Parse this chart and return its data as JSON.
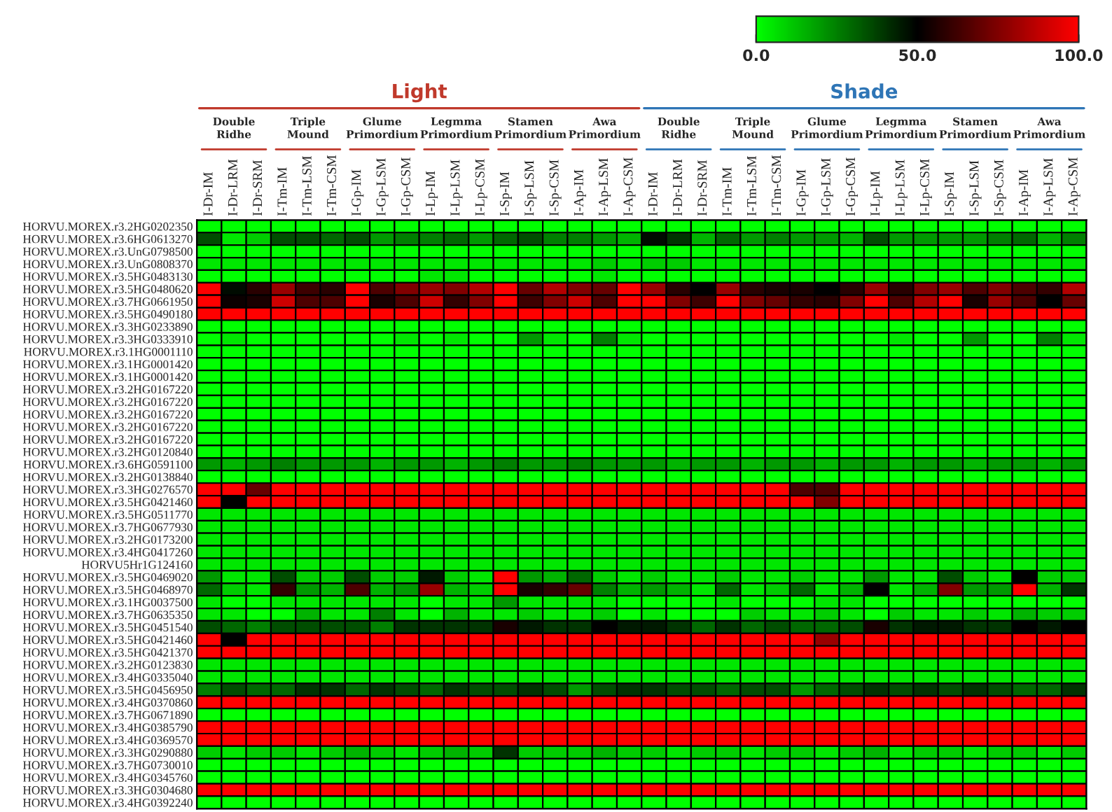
{
  "chart_data": {
    "type": "heatmap",
    "categories": [
      "I-Dr-IM",
      "I-Dr-LRM",
      "I-Dr-SRM",
      "I-Tm-IM",
      "I-Tm-LSM",
      "I-Tm-CSM",
      "I-Gp-IM",
      "I-Gp-LSM",
      "I-Gp-CSM",
      "I-Lp-IM",
      "I-Lp-LSM",
      "I-Lp-CSM",
      "I-Sp-IM",
      "I-Sp-LSM",
      "I-Sp-CSM",
      "I-Ap-IM",
      "I-Ap-LSM",
      "I-Ap-CSM",
      "I-Dr-IM",
      "I-Dr-LRM",
      "I-Dr-SRM",
      "I-Tm-IM",
      "I-Tm-LSM",
      "I-Tm-CSM",
      "I-Gp-IM",
      "I-Gp-LSM",
      "I-Gp-CSM",
      "I-Lp-IM",
      "I-Lp-LSM",
      "I-Lp-CSM",
      "I-Sp-IM",
      "I-Sp-LSM",
      "I-Sp-CSM",
      "I-Ap-IM",
      "I-Ap-LSM",
      "I-Ap-CSM"
    ],
    "y_categories": [
      "HORVU.MOREX.r3.2HG0202350",
      "HORVU.MOREX.r3.6HG0613270",
      "HORVU.MOREX.r3.UnG0798500",
      "HORVU.MOREX.r3.UnG0808370",
      "HORVU.MOREX.r3.5HG0483130",
      "HORVU.MOREX.r3.5HG0480620",
      "HORVU.MOREX.r3.7HG0661950",
      "HORVU.MOREX.r3.5HG0490180",
      "HORVU.MOREX.r3.3HG0233890",
      "HORVU.MOREX.r3.3HG0333910",
      "HORVU.MOREX.r3.1HG0001110",
      "HORVU.MOREX.r3.1HG0001420",
      "HORVU.MOREX.r3.1HG0001420",
      "HORVU.MOREX.r3.2HG0167220",
      "HORVU.MOREX.r3.2HG0167220",
      "HORVU.MOREX.r3.2HG0167220",
      "HORVU.MOREX.r3.2HG0167220",
      "HORVU.MOREX.r3.2HG0167220",
      "HORVU.MOREX.r3.2HG0120840",
      "HORVU.MOREX.r3.6HG0591100",
      "HORVU.MOREX.r3.2HG0138840",
      "HORVU.MOREX.r3.3HG0276570",
      "HORVU.MOREX.r3.5HG0421460",
      "HORVU.MOREX.r3.5HG0511770",
      "HORVU.MOREX.r3.7HG0677930",
      "HORVU.MOREX.r3.2HG0173200",
      "HORVU.MOREX.r3.4HG0417260",
      "HORVU5Hr1G124160",
      "HORVU.MOREX.r3.5HG0469020",
      "HORVU.MOREX.r3.5HG0468970",
      "HORVU.MOREX.r3.1HG0037500",
      "HORVU.MOREX.r3.7HG0635350",
      "HORVU.MOREX.r3.5HG0451540",
      "HORVU.MOREX.r3.5HG0421460",
      "HORVU.MOREX.r3.5HG0421370",
      "HORVU.MOREX.r3.2HG0123830",
      "HORVU.MOREX.r3.4HG0335040",
      "HORVU.MOREX.r3.5HG0456950",
      "HORVU.MOREX.r3.4HG0370860",
      "HORVU.MOREX.r3.7HG0671890",
      "HORVU.MOREX.r3.4HG0385790",
      "HORVU.MOREX.r3.4HG0369570",
      "HORVU.MOREX.r3.3HG0290880",
      "HORVU.MOREX.r3.7HG0730010",
      "HORVU.MOREX.r3.4HG0345760",
      "HORVU.MOREX.r3.3HG0304680",
      "HORVU.MOREX.r3.4HG0392240"
    ],
    "cells": [
      [
        0,
        0,
        0,
        0,
        0,
        0,
        0,
        0,
        0,
        0,
        0,
        0,
        0,
        0,
        0,
        0,
        0,
        0,
        0,
        0,
        0,
        0,
        0,
        0,
        0,
        0,
        0,
        0,
        0,
        0,
        0,
        0,
        0,
        0,
        0,
        0
      ],
      [
        35,
        5,
        10,
        35,
        35,
        30,
        35,
        20,
        25,
        25,
        30,
        20,
        30,
        35,
        25,
        25,
        20,
        15,
        48,
        40,
        15,
        30,
        20,
        25,
        20,
        20,
        15,
        35,
        20,
        20,
        20,
        20,
        25,
        30,
        15,
        25
      ],
      [
        0,
        0,
        0,
        0,
        0,
        0,
        0,
        0,
        0,
        0,
        0,
        0,
        0,
        0,
        0,
        0,
        0,
        0,
        0,
        0,
        0,
        0,
        0,
        0,
        0,
        0,
        0,
        0,
        0,
        0,
        0,
        0,
        0,
        0,
        0,
        0
      ],
      [
        5,
        5,
        5,
        5,
        5,
        5,
        5,
        5,
        5,
        5,
        5,
        5,
        5,
        5,
        5,
        5,
        10,
        5,
        10,
        10,
        5,
        5,
        5,
        5,
        5,
        5,
        5,
        5,
        5,
        5,
        5,
        5,
        5,
        5,
        5,
        5
      ],
      [
        0,
        0,
        0,
        0,
        0,
        0,
        0,
        0,
        0,
        5,
        5,
        0,
        0,
        0,
        0,
        0,
        5,
        0,
        0,
        0,
        0,
        0,
        0,
        0,
        0,
        0,
        0,
        0,
        0,
        0,
        0,
        0,
        0,
        0,
        0,
        0
      ],
      [
        100,
        48,
        58,
        80,
        62,
        58,
        100,
        65,
        75,
        80,
        75,
        85,
        100,
        70,
        85,
        75,
        70,
        100,
        80,
        58,
        50,
        80,
        58,
        55,
        55,
        50,
        58,
        80,
        58,
        75,
        80,
        65,
        75,
        65,
        60,
        85
      ],
      [
        100,
        52,
        55,
        90,
        65,
        65,
        100,
        55,
        65,
        90,
        60,
        75,
        100,
        62,
        75,
        90,
        65,
        100,
        100,
        75,
        62,
        100,
        75,
        70,
        60,
        58,
        75,
        100,
        65,
        85,
        100,
        55,
        80,
        65,
        50,
        70
      ],
      [
        100,
        100,
        100,
        100,
        100,
        100,
        100,
        100,
        100,
        100,
        100,
        100,
        100,
        100,
        100,
        100,
        100,
        100,
        100,
        100,
        100,
        100,
        100,
        100,
        100,
        100,
        100,
        100,
        100,
        100,
        100,
        100,
        100,
        100,
        100,
        100
      ],
      [
        0,
        0,
        0,
        0,
        0,
        0,
        0,
        0,
        0,
        0,
        0,
        0,
        0,
        0,
        0,
        0,
        0,
        0,
        0,
        0,
        0,
        0,
        0,
        0,
        0,
        0,
        0,
        0,
        0,
        0,
        0,
        0,
        0,
        0,
        0,
        0
      ],
      [
        0,
        5,
        0,
        0,
        0,
        0,
        0,
        0,
        5,
        0,
        5,
        0,
        0,
        20,
        5,
        0,
        25,
        5,
        0,
        0,
        0,
        0,
        0,
        0,
        0,
        0,
        0,
        0,
        5,
        0,
        0,
        20,
        0,
        0,
        25,
        5
      ],
      [
        0,
        0,
        0,
        0,
        0,
        0,
        0,
        0,
        0,
        0,
        0,
        0,
        0,
        0,
        0,
        0,
        0,
        0,
        0,
        0,
        0,
        0,
        0,
        0,
        0,
        0,
        0,
        0,
        0,
        0,
        0,
        0,
        0,
        0,
        0,
        0
      ],
      [
        0,
        0,
        0,
        0,
        0,
        0,
        0,
        0,
        0,
        0,
        0,
        0,
        0,
        0,
        0,
        0,
        0,
        0,
        0,
        0,
        0,
        0,
        0,
        0,
        0,
        0,
        0,
        0,
        0,
        0,
        0,
        0,
        0,
        0,
        0,
        0
      ],
      [
        0,
        0,
        0,
        0,
        0,
        0,
        0,
        0,
        0,
        0,
        0,
        0,
        0,
        0,
        0,
        0,
        0,
        0,
        0,
        0,
        0,
        0,
        0,
        0,
        0,
        0,
        0,
        0,
        0,
        0,
        0,
        0,
        0,
        0,
        0,
        0
      ],
      [
        0,
        0,
        0,
        0,
        0,
        0,
        0,
        0,
        0,
        0,
        0,
        0,
        0,
        0,
        0,
        0,
        0,
        0,
        0,
        0,
        0,
        0,
        0,
        0,
        0,
        0,
        0,
        0,
        0,
        0,
        0,
        0,
        0,
        0,
        0,
        0
      ],
      [
        0,
        0,
        0,
        0,
        0,
        0,
        0,
        0,
        0,
        0,
        0,
        0,
        0,
        0,
        0,
        0,
        0,
        0,
        0,
        0,
        0,
        0,
        0,
        0,
        0,
        0,
        0,
        0,
        0,
        0,
        0,
        0,
        0,
        0,
        0,
        0
      ],
      [
        0,
        0,
        0,
        0,
        0,
        0,
        0,
        0,
        0,
        0,
        0,
        0,
        0,
        0,
        0,
        0,
        0,
        0,
        0,
        0,
        0,
        0,
        0,
        0,
        0,
        0,
        0,
        0,
        0,
        0,
        0,
        0,
        0,
        0,
        0,
        0
      ],
      [
        0,
        0,
        0,
        0,
        0,
        0,
        0,
        0,
        0,
        0,
        0,
        0,
        0,
        0,
        0,
        0,
        0,
        0,
        0,
        0,
        0,
        0,
        0,
        0,
        0,
        0,
        0,
        0,
        0,
        0,
        0,
        0,
        0,
        0,
        0,
        0
      ],
      [
        0,
        0,
        0,
        0,
        0,
        0,
        0,
        0,
        0,
        0,
        0,
        0,
        0,
        0,
        0,
        0,
        0,
        0,
        0,
        0,
        0,
        0,
        0,
        0,
        0,
        0,
        0,
        0,
        0,
        0,
        0,
        0,
        0,
        0,
        0,
        0
      ],
      [
        0,
        0,
        0,
        0,
        0,
        0,
        0,
        0,
        0,
        0,
        0,
        0,
        0,
        0,
        0,
        0,
        0,
        0,
        0,
        0,
        0,
        0,
        0,
        0,
        0,
        0,
        0,
        0,
        0,
        0,
        0,
        0,
        0,
        0,
        0,
        0
      ],
      [
        20,
        15,
        20,
        25,
        20,
        20,
        20,
        15,
        20,
        20,
        15,
        20,
        25,
        20,
        20,
        25,
        20,
        20,
        20,
        15,
        20,
        20,
        15,
        20,
        20,
        15,
        20,
        20,
        15,
        20,
        20,
        15,
        20,
        20,
        15,
        20
      ],
      [
        0,
        0,
        0,
        0,
        0,
        0,
        0,
        0,
        0,
        0,
        0,
        0,
        0,
        0,
        0,
        0,
        0,
        0,
        0,
        0,
        0,
        0,
        0,
        0,
        0,
        0,
        0,
        0,
        0,
        0,
        0,
        0,
        0,
        0,
        0,
        0
      ],
      [
        100,
        100,
        70,
        100,
        100,
        100,
        100,
        100,
        100,
        100,
        100,
        100,
        100,
        100,
        100,
        100,
        100,
        100,
        100,
        100,
        100,
        100,
        100,
        100,
        65,
        65,
        100,
        100,
        100,
        100,
        100,
        100,
        100,
        100,
        100,
        100
      ],
      [
        100,
        50,
        100,
        100,
        100,
        100,
        100,
        100,
        100,
        100,
        100,
        100,
        100,
        100,
        100,
        100,
        100,
        100,
        100,
        100,
        100,
        100,
        100,
        100,
        100,
        75,
        100,
        100,
        100,
        100,
        100,
        100,
        100,
        100,
        100,
        100
      ],
      [
        5,
        5,
        5,
        5,
        5,
        5,
        5,
        5,
        5,
        5,
        5,
        5,
        5,
        5,
        5,
        5,
        5,
        5,
        5,
        5,
        5,
        5,
        5,
        5,
        5,
        5,
        5,
        5,
        5,
        5,
        5,
        5,
        5,
        5,
        5,
        5
      ],
      [
        5,
        5,
        5,
        5,
        5,
        5,
        5,
        5,
        5,
        5,
        5,
        5,
        5,
        5,
        5,
        5,
        5,
        5,
        5,
        5,
        5,
        5,
        5,
        5,
        5,
        5,
        5,
        5,
        5,
        5,
        5,
        5,
        5,
        5,
        5,
        5
      ],
      [
        5,
        5,
        5,
        5,
        5,
        5,
        5,
        5,
        5,
        5,
        5,
        5,
        5,
        5,
        5,
        5,
        5,
        5,
        5,
        5,
        5,
        5,
        5,
        5,
        5,
        5,
        5,
        5,
        5,
        5,
        5,
        5,
        5,
        5,
        5,
        5
      ],
      [
        5,
        5,
        5,
        5,
        5,
        5,
        5,
        5,
        5,
        5,
        5,
        5,
        5,
        5,
        5,
        5,
        5,
        5,
        5,
        5,
        5,
        5,
        5,
        5,
        5,
        5,
        5,
        5,
        5,
        5,
        5,
        5,
        5,
        5,
        5,
        5
      ],
      [
        5,
        5,
        5,
        5,
        5,
        5,
        5,
        5,
        5,
        5,
        5,
        5,
        5,
        5,
        5,
        5,
        5,
        5,
        5,
        5,
        5,
        5,
        5,
        5,
        5,
        5,
        5,
        5,
        5,
        5,
        5,
        5,
        5,
        5,
        5,
        5
      ],
      [
        20,
        5,
        5,
        35,
        10,
        10,
        35,
        10,
        10,
        45,
        10,
        5,
        100,
        20,
        15,
        30,
        10,
        5,
        10,
        5,
        5,
        10,
        5,
        5,
        10,
        5,
        5,
        20,
        5,
        5,
        35,
        10,
        5,
        50,
        10,
        10
      ],
      [
        30,
        10,
        5,
        60,
        20,
        15,
        65,
        15,
        20,
        80,
        15,
        10,
        100,
        55,
        60,
        70,
        25,
        15,
        20,
        15,
        5,
        30,
        5,
        10,
        30,
        5,
        15,
        50,
        5,
        15,
        75,
        20,
        20,
        100,
        15,
        40
      ],
      [
        5,
        0,
        0,
        5,
        5,
        5,
        5,
        5,
        5,
        0,
        5,
        5,
        20,
        5,
        5,
        5,
        5,
        0,
        0,
        0,
        0,
        5,
        0,
        0,
        0,
        5,
        5,
        0,
        0,
        0,
        0,
        0,
        0,
        0,
        0,
        0
      ],
      [
        5,
        5,
        0,
        0,
        15,
        5,
        5,
        25,
        5,
        0,
        15,
        5,
        5,
        10,
        5,
        5,
        10,
        0,
        5,
        0,
        0,
        0,
        10,
        5,
        5,
        10,
        5,
        0,
        10,
        5,
        5,
        10,
        5,
        15,
        10,
        10
      ],
      [
        35,
        30,
        25,
        35,
        35,
        35,
        35,
        25,
        40,
        40,
        40,
        40,
        55,
        45,
        40,
        40,
        50,
        45,
        45,
        40,
        30,
        40,
        30,
        35,
        30,
        30,
        35,
        55,
        40,
        45,
        45,
        40,
        40,
        50,
        45,
        50
      ],
      [
        100,
        50,
        100,
        100,
        100,
        100,
        100,
        100,
        100,
        100,
        100,
        100,
        100,
        100,
        100,
        100,
        100,
        100,
        100,
        100,
        100,
        100,
        100,
        100,
        100,
        80,
        100,
        100,
        100,
        100,
        100,
        100,
        100,
        100,
        100,
        100
      ],
      [
        100,
        100,
        100,
        100,
        100,
        100,
        100,
        100,
        100,
        100,
        100,
        100,
        100,
        100,
        100,
        100,
        100,
        100,
        100,
        100,
        100,
        100,
        100,
        100,
        100,
        100,
        100,
        100,
        100,
        100,
        100,
        100,
        100,
        100,
        100,
        100
      ],
      [
        5,
        5,
        5,
        5,
        5,
        5,
        5,
        5,
        5,
        5,
        5,
        5,
        5,
        5,
        5,
        5,
        5,
        5,
        5,
        5,
        5,
        5,
        5,
        5,
        5,
        5,
        5,
        5,
        5,
        5,
        5,
        5,
        5,
        5,
        5,
        5
      ],
      [
        5,
        5,
        5,
        5,
        5,
        5,
        5,
        5,
        5,
        5,
        5,
        5,
        5,
        5,
        5,
        5,
        5,
        5,
        5,
        5,
        5,
        5,
        5,
        5,
        5,
        5,
        5,
        5,
        5,
        5,
        5,
        5,
        5,
        5,
        5,
        5
      ],
      [
        25,
        35,
        30,
        30,
        40,
        40,
        30,
        40,
        35,
        30,
        40,
        35,
        35,
        40,
        35,
        20,
        35,
        40,
        40,
        35,
        35,
        30,
        35,
        35,
        20,
        30,
        35,
        40,
        35,
        40,
        35,
        40,
        35,
        30,
        30,
        40
      ],
      [
        100,
        100,
        100,
        100,
        100,
        100,
        100,
        100,
        100,
        100,
        100,
        100,
        100,
        100,
        100,
        100,
        100,
        100,
        100,
        100,
        100,
        100,
        100,
        100,
        100,
        100,
        100,
        100,
        100,
        100,
        100,
        100,
        100,
        100,
        100,
        100
      ],
      [
        0,
        0,
        0,
        0,
        0,
        0,
        0,
        0,
        0,
        0,
        0,
        0,
        0,
        0,
        0,
        0,
        0,
        0,
        0,
        0,
        0,
        0,
        0,
        0,
        0,
        0,
        0,
        0,
        0,
        0,
        0,
        0,
        0,
        0,
        0,
        0
      ],
      [
        100,
        100,
        100,
        100,
        100,
        100,
        100,
        100,
        100,
        100,
        100,
        100,
        100,
        100,
        100,
        100,
        100,
        100,
        100,
        100,
        100,
        100,
        100,
        100,
        100,
        100,
        100,
        100,
        100,
        100,
        100,
        100,
        100,
        100,
        100,
        100
      ],
      [
        100,
        100,
        100,
        100,
        100,
        100,
        100,
        100,
        100,
        100,
        100,
        100,
        100,
        100,
        100,
        100,
        100,
        100,
        100,
        100,
        100,
        100,
        100,
        100,
        100,
        100,
        100,
        100,
        100,
        100,
        100,
        100,
        100,
        100,
        100,
        100
      ],
      [
        10,
        5,
        10,
        10,
        5,
        10,
        15,
        10,
        5,
        10,
        15,
        10,
        40,
        10,
        10,
        10,
        15,
        10,
        10,
        5,
        10,
        10,
        5,
        10,
        10,
        5,
        10,
        15,
        5,
        10,
        10,
        5,
        10,
        10,
        5,
        10
      ],
      [
        0,
        0,
        0,
        0,
        0,
        0,
        0,
        0,
        0,
        0,
        0,
        0,
        0,
        0,
        0,
        0,
        0,
        0,
        0,
        0,
        0,
        0,
        0,
        0,
        0,
        0,
        0,
        0,
        0,
        0,
        0,
        0,
        0,
        0,
        0,
        0
      ],
      [
        0,
        0,
        0,
        0,
        0,
        0,
        0,
        0,
        0,
        0,
        0,
        0,
        0,
        0,
        0,
        0,
        0,
        0,
        0,
        0,
        0,
        0,
        0,
        0,
        0,
        0,
        0,
        0,
        0,
        0,
        0,
        0,
        0,
        0,
        0,
        0
      ],
      [
        100,
        100,
        100,
        100,
        100,
        100,
        100,
        100,
        100,
        100,
        100,
        100,
        100,
        100,
        100,
        100,
        100,
        100,
        100,
        100,
        100,
        100,
        100,
        100,
        100,
        100,
        100,
        100,
        100,
        100,
        100,
        100,
        100,
        100,
        100,
        100
      ],
      [
        0,
        0,
        0,
        0,
        0,
        0,
        0,
        0,
        0,
        0,
        0,
        0,
        0,
        0,
        0,
        0,
        0,
        0,
        0,
        0,
        0,
        0,
        0,
        0,
        0,
        0,
        0,
        0,
        0,
        0,
        0,
        0,
        0,
        0,
        0,
        0
      ]
    ],
    "clim": [
      0,
      100
    ],
    "cticks": [
      {
        "value": 0,
        "label": "0.0"
      },
      {
        "value": 50,
        "label": "50.0"
      },
      {
        "value": 100,
        "label": "100.0"
      }
    ],
    "annotations": [
      "Light",
      "Shade",
      "Double\nRidhe",
      "Triple\nMound",
      "Glume\nPrimordium",
      "Legmma\nPrimordium",
      "Stamen\nPrimordium",
      "Awa\nPrimordium",
      "Double\nRidhe",
      "Triple\nMound",
      "Glume\nPrimordium",
      "Legmma\nPrimordium",
      "Stamen\nPrimordium",
      "Awa\nPrimordium"
    ]
  }
}
